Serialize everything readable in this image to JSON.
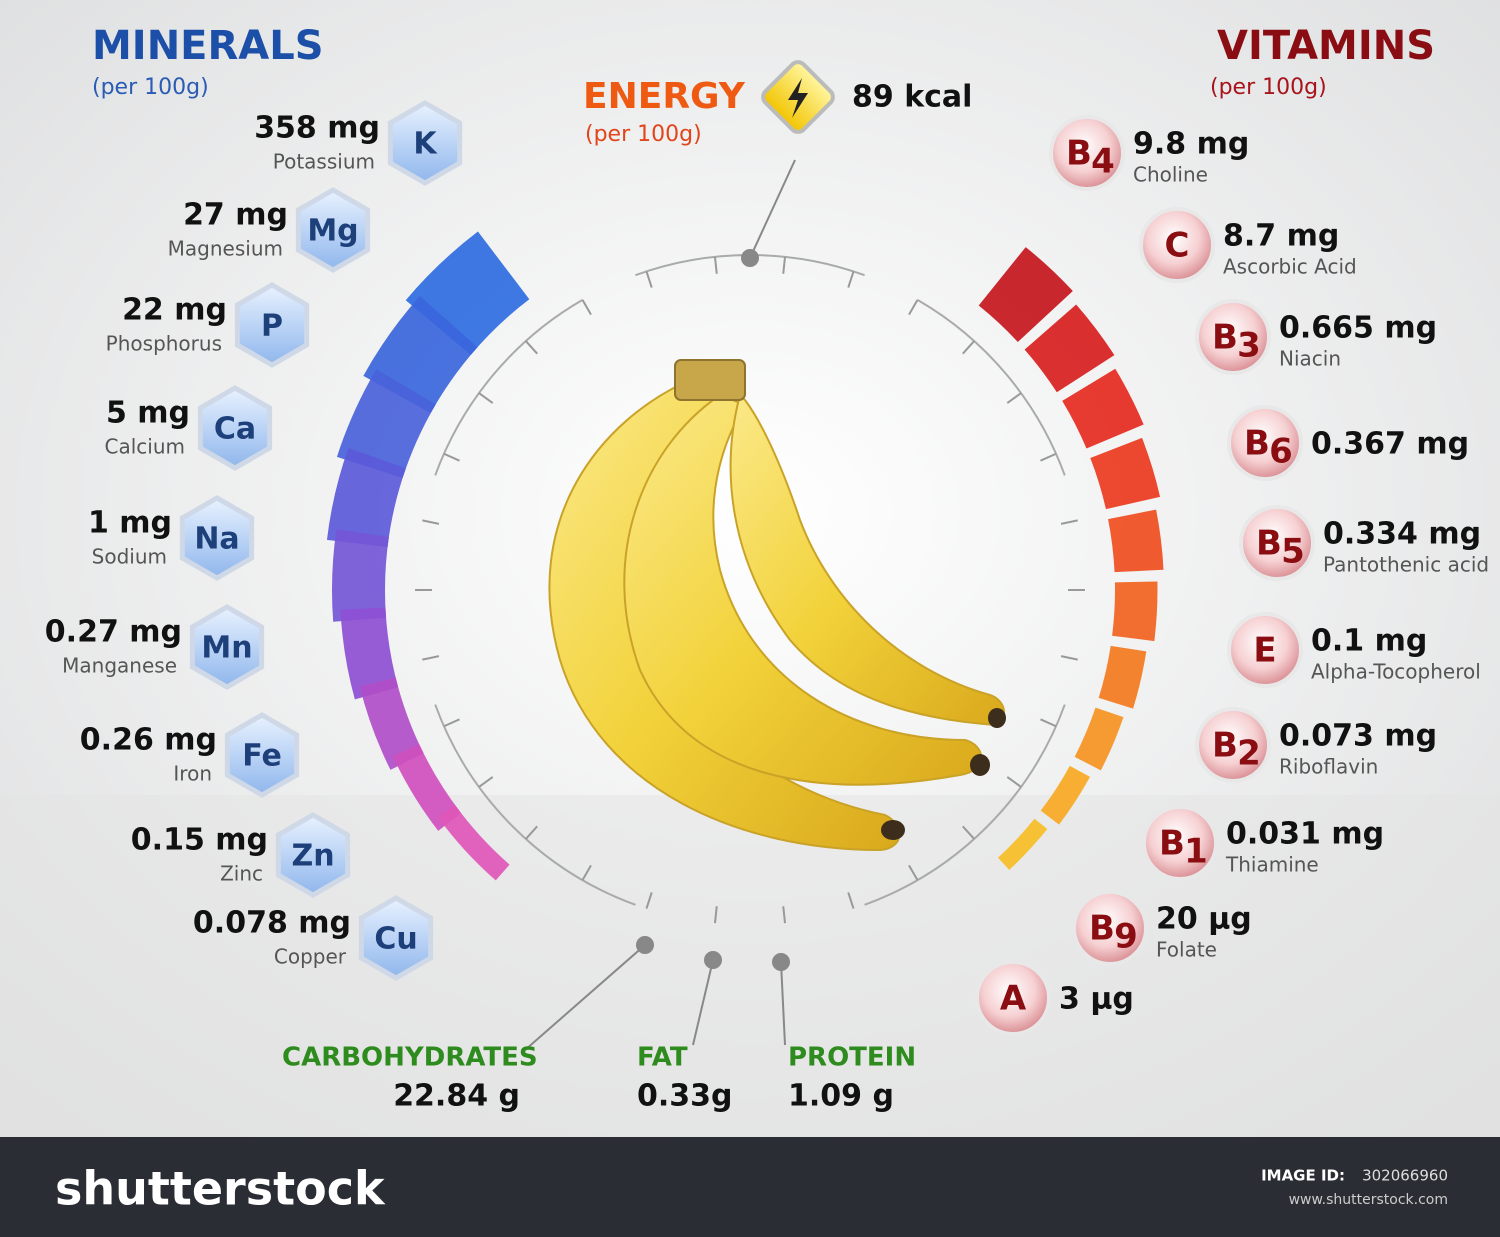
{
  "minerals": {
    "title": "MINERALS",
    "subtitle": "(per 100g)",
    "items": [
      {
        "amount": "358 mg",
        "name": "Potassium",
        "symbol": "K"
      },
      {
        "amount": "27 mg",
        "name": "Magnesium",
        "symbol": "Mg"
      },
      {
        "amount": "22 mg",
        "name": "Phosphorus",
        "symbol": "P"
      },
      {
        "amount": "5 mg",
        "name": "Calcium",
        "symbol": "Ca"
      },
      {
        "amount": "1 mg",
        "name": "Sodium",
        "symbol": "Na"
      },
      {
        "amount": "0.27 mg",
        "name": "Manganese",
        "symbol": "Mn"
      },
      {
        "amount": "0.26 mg",
        "name": "Iron",
        "symbol": "Fe"
      },
      {
        "amount": "0.15 mg",
        "name": "Zinc",
        "symbol": "Zn"
      },
      {
        "amount": "0.078 mg",
        "name": "Copper",
        "symbol": "Cu"
      }
    ]
  },
  "vitamins": {
    "title": "VITAMINS",
    "subtitle": "(per 100g)",
    "items": [
      {
        "amount": "9.8 mg",
        "name": "Choline",
        "symbol": "B",
        "subscript": "4"
      },
      {
        "amount": "8.7 mg",
        "name": "Ascorbic Acid",
        "symbol": "C"
      },
      {
        "amount": "0.665 mg",
        "name": "Niacin",
        "symbol": "B",
        "subscript": "3"
      },
      {
        "amount": "0.367 mg",
        "symbol": "B",
        "subscript": "6"
      },
      {
        "amount": "0.334 mg",
        "name": "Pantothenic acid",
        "symbol": "B",
        "subscript": "5"
      },
      {
        "amount": "0.1 mg",
        "name": "Alpha-Tocopherol",
        "symbol": "E"
      },
      {
        "amount": "0.073 mg",
        "name": "Riboflavin",
        "symbol": "B",
        "subscript": "2"
      },
      {
        "amount": "0.031 mg",
        "name": "Thiamine",
        "symbol": "B",
        "subscript": "1"
      },
      {
        "amount": "20 µg",
        "name": "Folate",
        "symbol": "B",
        "subscript": "9"
      },
      {
        "amount": "3 µg",
        "symbol": "A"
      }
    ]
  },
  "energy": {
    "title": "ENERGY",
    "subtitle": "(per 100g)",
    "value": "89 kcal"
  },
  "macros": [
    {
      "name": "CARBOHYDRATES",
      "value": "22.84 g"
    },
    {
      "name": "FAT",
      "value": "0.33g"
    },
    {
      "name": "PROTEIN",
      "value": "1.09 g"
    }
  ],
  "footer": {
    "brand": "shutterstock",
    "image_id_label": "IMAGE ID:",
    "image_id": "302066960",
    "url": "www.shutterstock.com"
  }
}
